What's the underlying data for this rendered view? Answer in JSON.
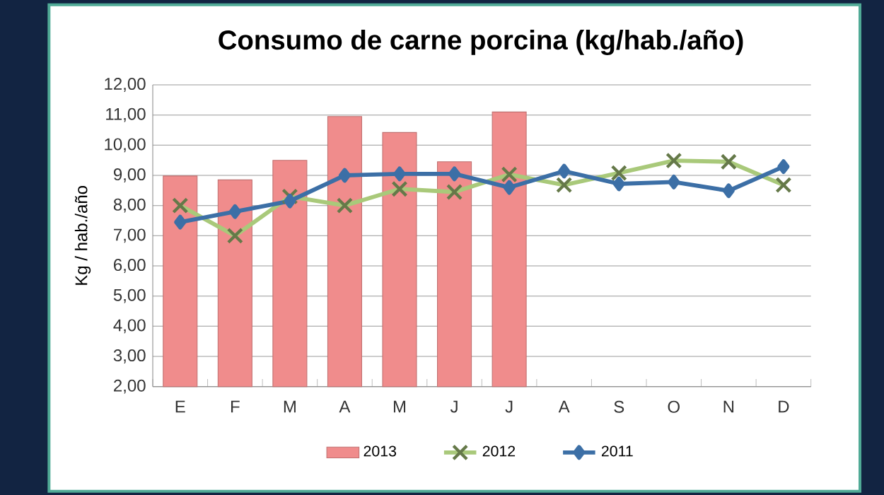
{
  "chart_data": {
    "type": "bar",
    "title": "Consumo de carne porcina (kg/hab./año)",
    "ylabel": "Kg / hab./año",
    "categories": [
      "E",
      "F",
      "M",
      "A",
      "M",
      "J",
      "J",
      "A",
      "S",
      "O",
      "N",
      "D"
    ],
    "series": [
      {
        "name": "2013",
        "color": "#f08c8c",
        "values": [
          8.98,
          8.85,
          9.5,
          10.95,
          10.42,
          9.45,
          11.1,
          null,
          null,
          null,
          null,
          null
        ]
      },
      {
        "name": "2012",
        "type": "line",
        "color": "#a9c97a",
        "marker": "cross",
        "values": [
          8.0,
          7.0,
          8.3,
          8.0,
          8.55,
          8.45,
          9.03,
          8.68,
          9.08,
          9.49,
          9.45,
          8.68
        ]
      },
      {
        "name": "2011",
        "type": "line",
        "color": "#3c6fa6",
        "marker": "diamond",
        "values": [
          7.45,
          7.8,
          8.15,
          9.0,
          9.05,
          9.05,
          8.6,
          9.14,
          8.72,
          8.78,
          8.49,
          9.29
        ]
      }
    ],
    "ylim": [
      2,
      12
    ],
    "yticks": [
      {
        "value": 2,
        "label": "2,00"
      },
      {
        "value": 3,
        "label": "3,00"
      },
      {
        "value": 4,
        "label": "4,00"
      },
      {
        "value": 5,
        "label": "5,00"
      },
      {
        "value": 6,
        "label": "6,00"
      },
      {
        "value": 7,
        "label": "7,00"
      },
      {
        "value": 8,
        "label": "8,00"
      },
      {
        "value": 9,
        "label": "9,00"
      },
      {
        "value": 10,
        "label": "10,00"
      },
      {
        "value": 11,
        "label": "11,00"
      },
      {
        "value": 12,
        "label": "12,00"
      }
    ],
    "grid": "y",
    "legend": "bottom",
    "line_style": "solid"
  }
}
